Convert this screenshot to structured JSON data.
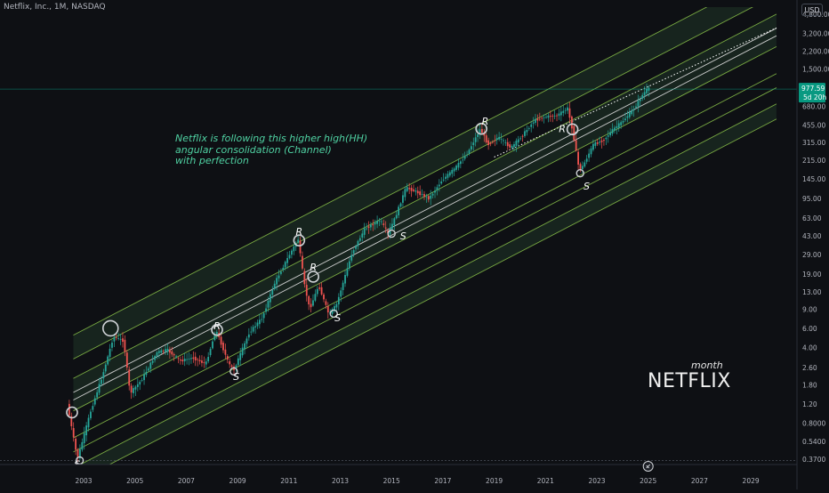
{
  "header": {
    "symbol_label": "Netflix, Inc., 1M, NASDAQ",
    "currency": "USD"
  },
  "note_lines": [
    "Netflix is following this higher high(HH)",
    "angular consolidation (Channel)",
    "with perfection"
  ],
  "watermark": {
    "timeframe": "month",
    "brand": "NETFLIX"
  },
  "colors": {
    "background": "#0e1014",
    "up": "#26a69a",
    "down": "#ef5350",
    "channel": "#8bc34a",
    "channel_fill": "#2e5a38",
    "median": "#e0e0e0",
    "note": "#4fd1a2",
    "price_tag": "#089981"
  },
  "chart_data": {
    "type": "candlestick",
    "title": "",
    "y_scale": "log",
    "ylim": [
      0.33,
      5600
    ],
    "xlim": [
      2002.3,
      2030
    ],
    "y_ticks": [
      "0.3700",
      "0.5400",
      "0.8000",
      "1.20",
      "1.80",
      "2.60",
      "4.00",
      "6.00",
      "9.00",
      "13.00",
      "19.00",
      "29.00",
      "43.00",
      "63.00",
      "95.00",
      "145.00",
      "215.00",
      "315.00",
      "455.00",
      "680.00",
      "1,500.00",
      "2,200.00",
      "3,200.00",
      "4,800.00"
    ],
    "x_ticks": [
      "2003",
      "2005",
      "2007",
      "2009",
      "2011",
      "2013",
      "2015",
      "2017",
      "2019",
      "2021",
      "2023",
      "2025",
      "2027",
      "2029"
    ],
    "last_price": {
      "value": "977.59",
      "countdown": "5d 20h"
    },
    "price_path": [
      [
        2002.4,
        1.2
      ],
      [
        2002.8,
        0.37
      ],
      [
        2003.3,
        1.0
      ],
      [
        2003.8,
        2.3
      ],
      [
        2004.2,
        5.0
      ],
      [
        2004.6,
        4.6
      ],
      [
        2004.85,
        1.5
      ],
      [
        2005.3,
        2.0
      ],
      [
        2005.9,
        3.6
      ],
      [
        2006.3,
        3.8
      ],
      [
        2006.8,
        3.0
      ],
      [
        2007.3,
        3.2
      ],
      [
        2007.8,
        2.8
      ],
      [
        2008.2,
        5.8
      ],
      [
        2008.7,
        2.8
      ],
      [
        2008.9,
        2.5
      ],
      [
        2009.5,
        5.5
      ],
      [
        2010.0,
        7.5
      ],
      [
        2010.5,
        16
      ],
      [
        2011.0,
        27
      ],
      [
        2011.4,
        40
      ],
      [
        2011.65,
        15
      ],
      [
        2011.85,
        9
      ],
      [
        2012.2,
        15
      ],
      [
        2012.6,
        8
      ],
      [
        2012.9,
        10
      ],
      [
        2013.5,
        30
      ],
      [
        2014.0,
        50
      ],
      [
        2014.6,
        60
      ],
      [
        2014.9,
        45
      ],
      [
        2015.2,
        65
      ],
      [
        2015.6,
        120
      ],
      [
        2016.0,
        110
      ],
      [
        2016.5,
        95
      ],
      [
        2017.0,
        140
      ],
      [
        2017.5,
        180
      ],
      [
        2018.0,
        250
      ],
      [
        2018.5,
        420
      ],
      [
        2018.8,
        300
      ],
      [
        2019.2,
        350
      ],
      [
        2019.7,
        280
      ],
      [
        2020.2,
        380
      ],
      [
        2020.6,
        500
      ],
      [
        2021.0,
        540
      ],
      [
        2021.5,
        560
      ],
      [
        2021.9,
        650
      ],
      [
        2022.1,
        400
      ],
      [
        2022.35,
        175
      ],
      [
        2022.5,
        190
      ],
      [
        2022.9,
        300
      ],
      [
        2023.3,
        330
      ],
      [
        2023.7,
        420
      ],
      [
        2024.0,
        480
      ],
      [
        2024.5,
        650
      ],
      [
        2024.8,
        850
      ],
      [
        2025.0,
        980
      ]
    ],
    "channel": {
      "anchor_start": [
        2002.4,
        0.55
      ],
      "anchor_end": [
        2025.0,
        330
      ],
      "band_offsets_log10": [
        -0.42,
        -0.28,
        -0.13,
        0.0,
        0.25,
        0.55,
        0.73,
        0.95
      ],
      "median_offsets_log10": [
        0.35,
        0.42
      ]
    },
    "trend_dotted": {
      "start": [
        2019.0,
        230
      ],
      "end": [
        2030,
        3600
      ]
    },
    "markers": [
      {
        "kind": "circle",
        "x": 2002.55,
        "y": 1.0
      },
      {
        "kind": "circle",
        "x": 2004.05,
        "y": 6.0
      },
      {
        "kind": "circle",
        "x": 2008.2,
        "y": 5.8
      },
      {
        "kind": "circle",
        "x": 2011.4,
        "y": 39
      },
      {
        "kind": "circle",
        "x": 2011.95,
        "y": 18
      },
      {
        "kind": "circle",
        "x": 2018.5,
        "y": 420
      },
      {
        "kind": "circle",
        "x": 2022.05,
        "y": 415
      },
      {
        "kind": "small",
        "x": 2002.85,
        "y": 0.36
      },
      {
        "kind": "small",
        "x": 2008.85,
        "y": 2.4
      },
      {
        "kind": "small",
        "x": 2012.75,
        "y": 8.2
      },
      {
        "kind": "small",
        "x": 2015.0,
        "y": 45
      },
      {
        "kind": "small",
        "x": 2022.35,
        "y": 163
      }
    ],
    "annotations": [
      {
        "text": "S",
        "x": 2002.75,
        "y": 0.31
      },
      {
        "text": "R",
        "x": 2008.2,
        "y": 5.9
      },
      {
        "text": "S",
        "x": 2008.95,
        "y": 2.0
      },
      {
        "text": "R",
        "x": 2011.4,
        "y": 44
      },
      {
        "text": "R",
        "x": 2011.95,
        "y": 20.5
      },
      {
        "text": "S",
        "x": 2012.9,
        "y": 7.0
      },
      {
        "text": "S",
        "x": 2015.45,
        "y": 40
      },
      {
        "text": "R",
        "x": 2018.65,
        "y": 460
      },
      {
        "text": "R",
        "x": 2021.65,
        "y": 390
      },
      {
        "text": "S",
        "x": 2022.6,
        "y": 115
      }
    ]
  }
}
